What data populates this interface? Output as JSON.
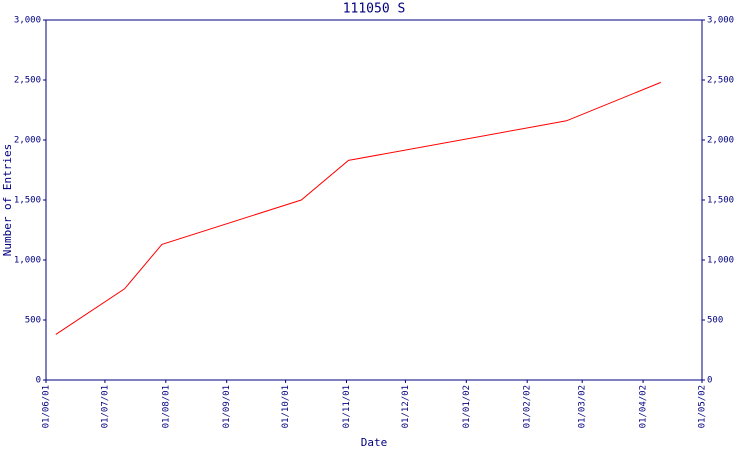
{
  "chart_data": {
    "type": "line",
    "title": "111050 S",
    "xlabel": "Date",
    "ylabel": "Number of Entries",
    "x": [
      "2001-06-06",
      "2001-07-11",
      "2001-07-30",
      "2001-10-09",
      "2001-11-02",
      "2002-02-21",
      "2002-04-10"
    ],
    "series": [
      {
        "name": "111050 S",
        "color": "#ff0000",
        "values": [
          380,
          760,
          1130,
          1500,
          1830,
          2160,
          2480
        ]
      }
    ],
    "xlim": [
      "2001-06-01",
      "2002-05-01"
    ],
    "xticks": [
      {
        "value": "2001-06-01",
        "label": "01/06/01"
      },
      {
        "value": "2001-07-01",
        "label": "01/07/01"
      },
      {
        "value": "2001-08-01",
        "label": "01/08/01"
      },
      {
        "value": "2001-09-01",
        "label": "01/09/01"
      },
      {
        "value": "2001-10-01",
        "label": "01/10/01"
      },
      {
        "value": "2001-11-01",
        "label": "01/11/01"
      },
      {
        "value": "2001-12-01",
        "label": "01/12/01"
      },
      {
        "value": "2002-01-01",
        "label": "01/01/02"
      },
      {
        "value": "2002-02-01",
        "label": "01/02/02"
      },
      {
        "value": "2002-03-01",
        "label": "01/03/02"
      },
      {
        "value": "2002-04-01",
        "label": "01/04/02"
      },
      {
        "value": "2002-05-01",
        "label": "01/05/02"
      }
    ],
    "ylim": [
      0,
      3000
    ],
    "yticks": [
      0,
      500,
      {
        "value": 1000,
        "label": "1,000"
      },
      {
        "value": 1500,
        "label": "1,500"
      },
      {
        "value": 2000,
        "label": "2,000"
      },
      {
        "value": 2500,
        "label": "2,500"
      },
      {
        "value": 3000,
        "label": "3,000"
      }
    ],
    "right_axis": true,
    "axis_color": "#000080"
  }
}
